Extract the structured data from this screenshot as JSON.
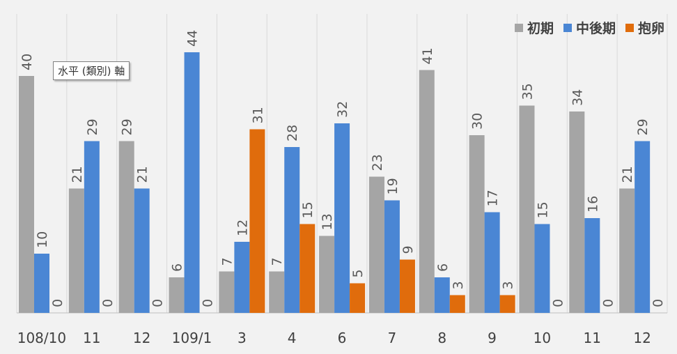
{
  "chart_data": {
    "type": "bar",
    "categories": [
      "108/10",
      "11",
      "12",
      "109/1",
      "3",
      "4",
      "6",
      "7",
      "8",
      "9",
      "10",
      "11",
      "12"
    ],
    "series": [
      {
        "name": "初期",
        "color": "#a5a5a5",
        "values": [
          40,
          21,
          29,
          6,
          7,
          7,
          13,
          23,
          41,
          30,
          35,
          34,
          21
        ]
      },
      {
        "name": "中後期",
        "color": "#4a86d4",
        "values": [
          10,
          29,
          21,
          44,
          12,
          28,
          32,
          19,
          6,
          17,
          15,
          16,
          29
        ]
      },
      {
        "name": "抱卵",
        "color": "#e06c0c",
        "values": [
          0,
          0,
          0,
          0,
          31,
          15,
          5,
          9,
          3,
          3,
          0,
          0,
          0
        ]
      }
    ],
    "ylim": [
      0,
      50
    ],
    "grid": "vertical",
    "legend_position": "top-right"
  },
  "tooltip": {
    "text": "水平 (類別) 軸"
  }
}
